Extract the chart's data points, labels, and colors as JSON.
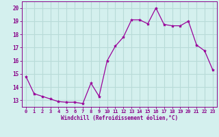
{
  "x": [
    0,
    1,
    2,
    3,
    4,
    5,
    6,
    7,
    8,
    9,
    10,
    11,
    12,
    13,
    14,
    15,
    16,
    17,
    18,
    19,
    20,
    21,
    22,
    23
  ],
  "y": [
    14.8,
    13.5,
    13.3,
    13.1,
    12.9,
    12.85,
    12.85,
    12.75,
    14.3,
    13.3,
    16.0,
    17.1,
    17.8,
    19.1,
    19.1,
    18.8,
    20.0,
    18.75,
    18.65,
    18.65,
    19.0,
    17.2,
    16.75,
    15.3
  ],
  "line_color": "#990099",
  "marker": "*",
  "marker_size": 3,
  "bg_color": "#d4f0ee",
  "grid_color": "#b8dbd8",
  "xlabel": "Windchill (Refroidissement éolien,°C)",
  "tick_color": "#880088",
  "ylim": [
    12.5,
    20.5
  ],
  "xlim": [
    -0.5,
    23.5
  ],
  "yticks": [
    13,
    14,
    15,
    16,
    17,
    18,
    19,
    20
  ],
  "xticks": [
    0,
    1,
    2,
    3,
    4,
    5,
    6,
    7,
    8,
    9,
    10,
    11,
    12,
    13,
    14,
    15,
    16,
    17,
    18,
    19,
    20,
    21,
    22,
    23
  ],
  "fig_width": 3.2,
  "fig_height": 2.0,
  "dpi": 100
}
